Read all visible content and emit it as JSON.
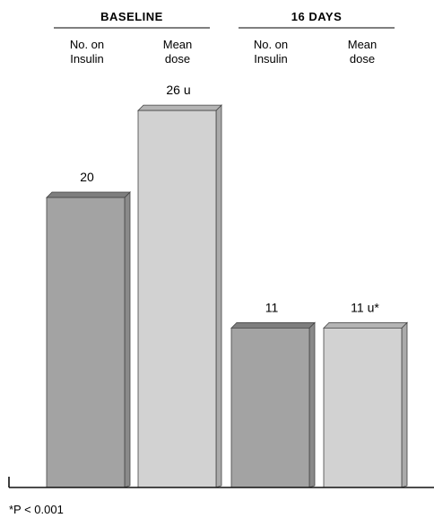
{
  "chart_data": {
    "type": "bar",
    "groups": [
      {
        "title": "BASELINE",
        "columns": [
          {
            "head": [
              "No. on",
              "Insulin"
            ],
            "label": "20",
            "value": 20,
            "style": "dark"
          },
          {
            "head": [
              "Mean",
              "dose"
            ],
            "label": "26 u",
            "value": 26,
            "style": "light"
          }
        ]
      },
      {
        "title": "16 DAYS",
        "columns": [
          {
            "head": [
              "No. on",
              "Insulin"
            ],
            "label": "11",
            "value": 11,
            "style": "dark"
          },
          {
            "head": [
              "Mean",
              "dose"
            ],
            "label": "11 u*",
            "value": 11,
            "style": "light"
          }
        ]
      }
    ],
    "footnote": "*P < 0.001",
    "colors": {
      "dark_face": "#a3a3a3",
      "dark_top": "#7e7e7e",
      "dark_side": "#8a8a8a",
      "light_face": "#d2d2d2",
      "light_top": "#b4b4b4",
      "light_side": "#aaaaaa",
      "stroke": "#444444",
      "axis": "#111111"
    },
    "ylim": [
      0,
      30
    ],
    "grid": false
  }
}
